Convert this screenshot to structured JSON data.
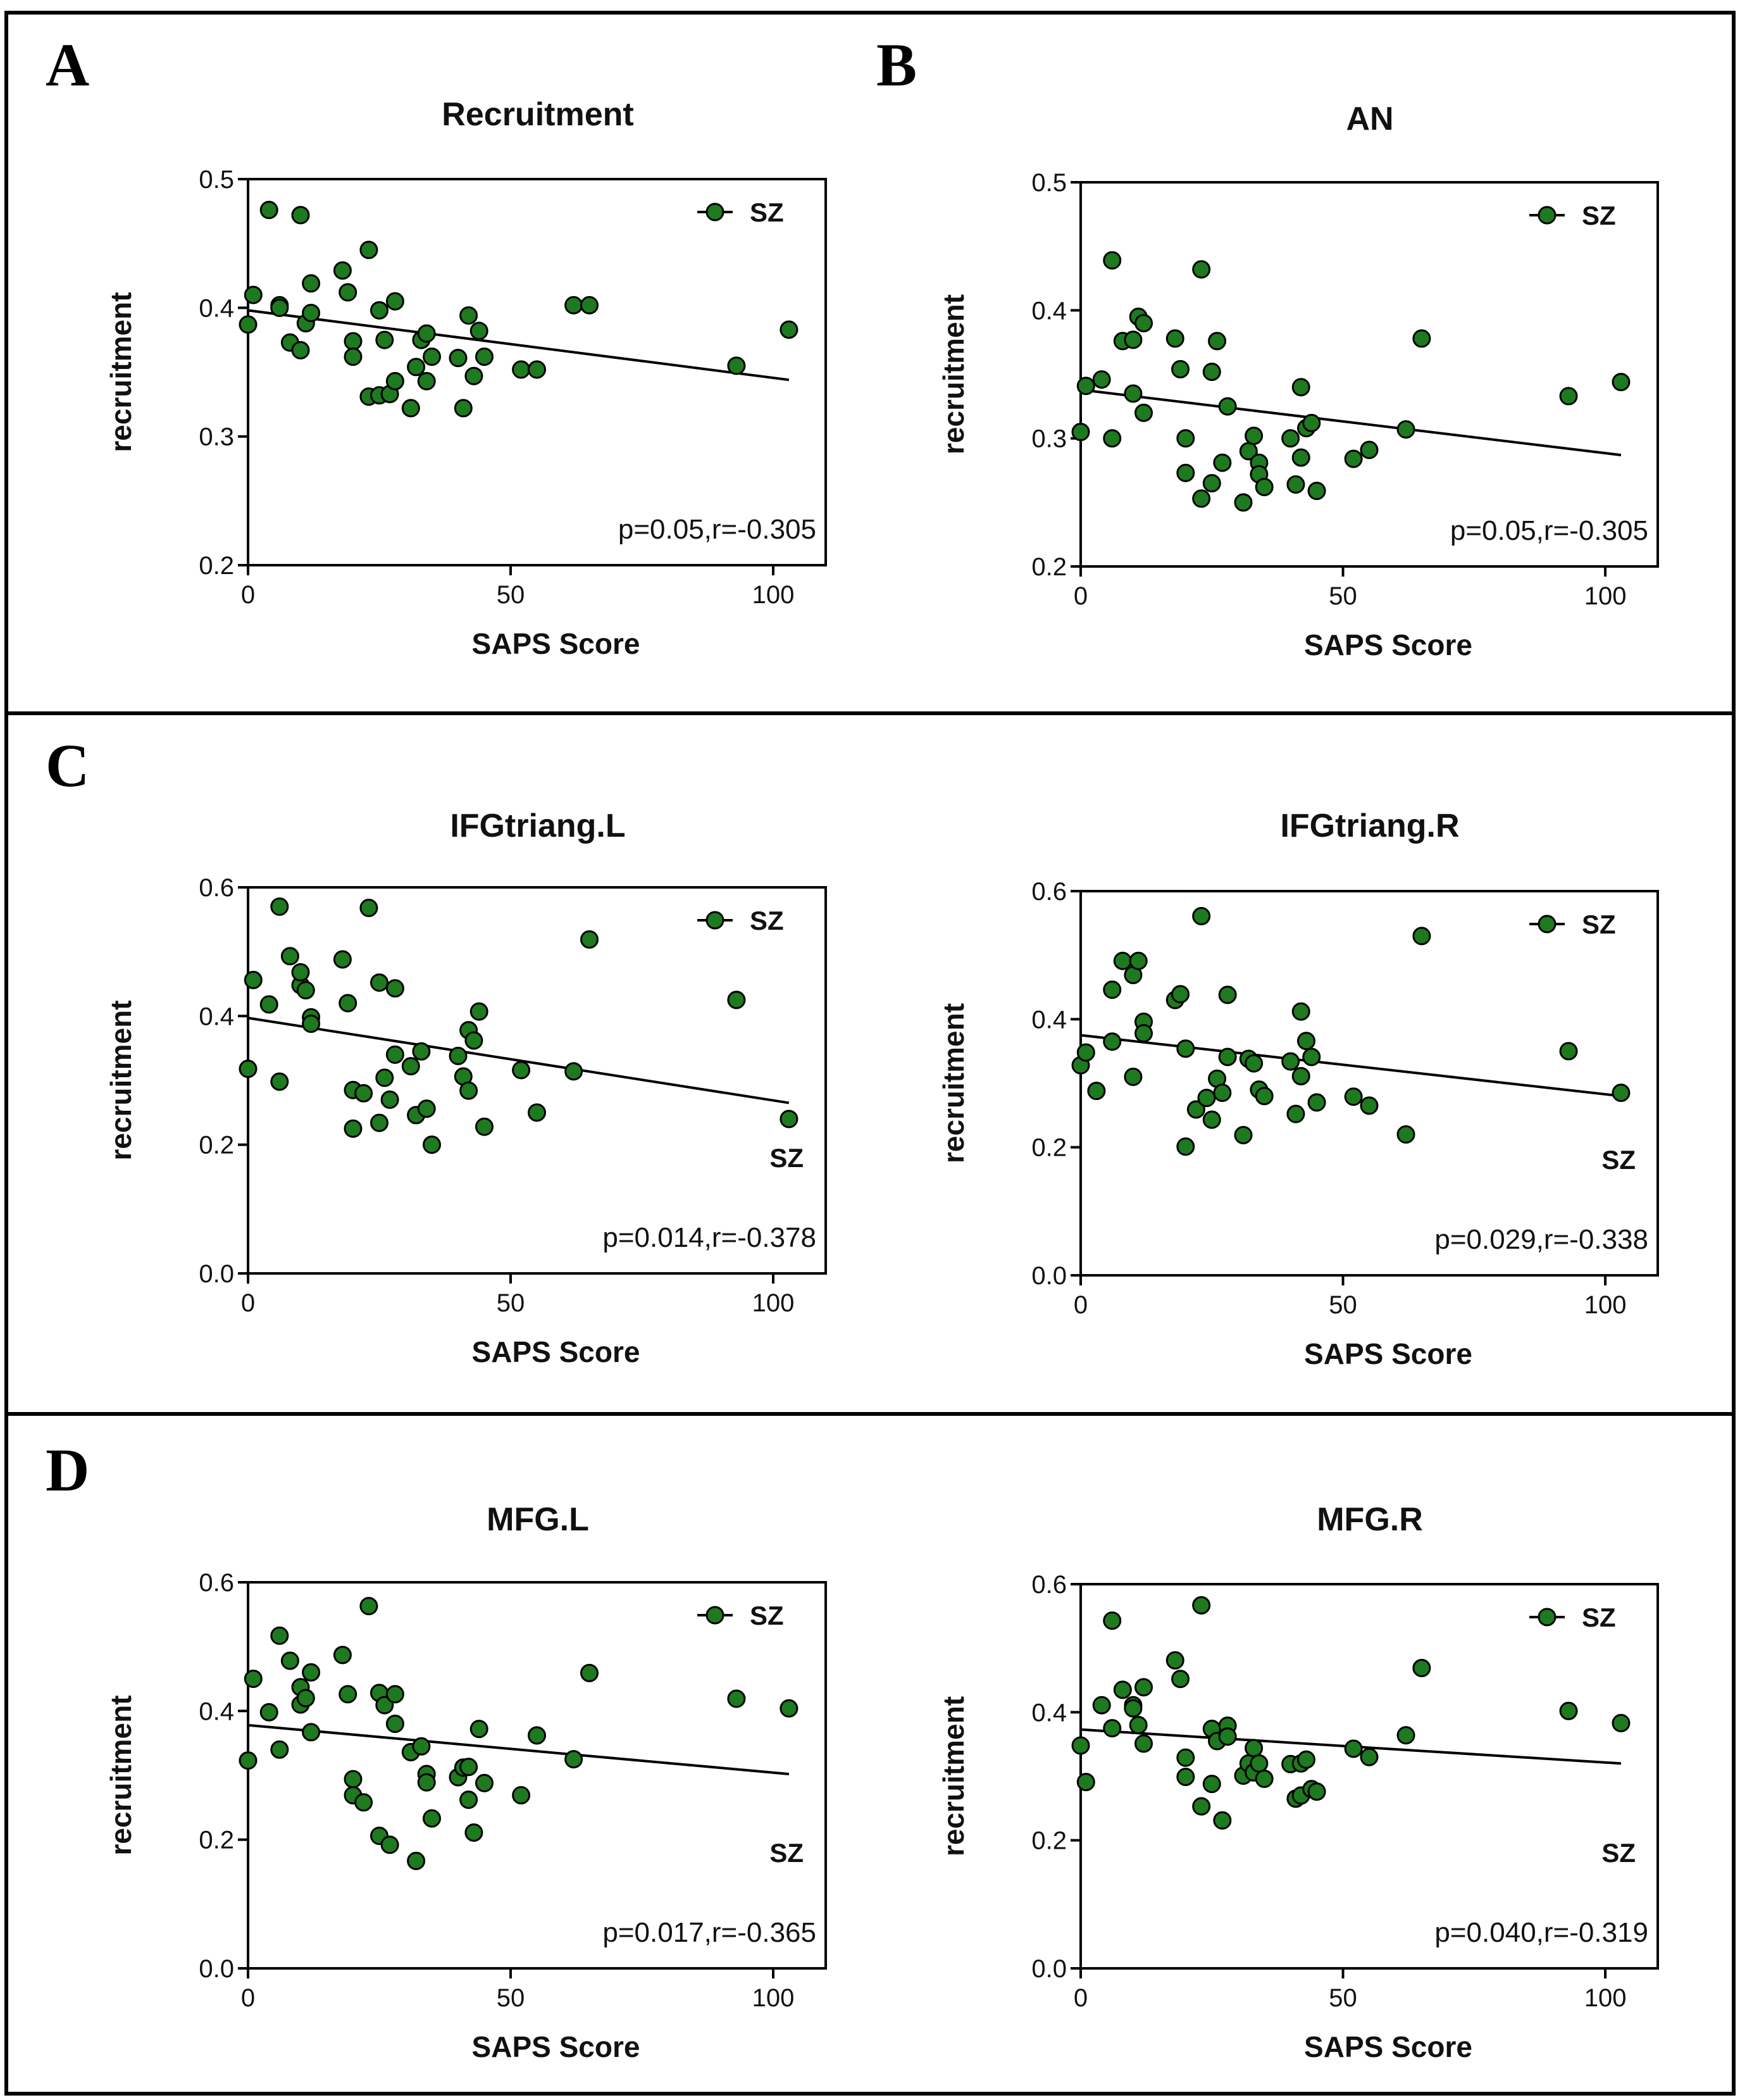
{
  "panel_letters": [
    "A",
    "B",
    "C",
    "D"
  ],
  "chart_data": [
    {
      "type": "scatter",
      "title": "Recruitment",
      "xlabel": "SAPS Score",
      "ylabel": "recruitment",
      "xlim": [
        0,
        110
      ],
      "ylim": [
        0.2,
        0.5
      ],
      "xticks": [
        0,
        50,
        100
      ],
      "yticks": [
        0.2,
        0.3,
        0.4,
        0.5
      ],
      "xtick_labels": [
        "0",
        "50",
        "100"
      ],
      "ytick_labels": [
        "0.2",
        "0.3",
        "0.4",
        "0.5"
      ],
      "legend": {
        "label": "SZ",
        "position": "top-right"
      },
      "series_label": "",
      "annotation": "p=0.05,r=-0.305",
      "marker_color": "#1e7a1e",
      "fit_line": {
        "x": [
          0,
          103
        ],
        "y": [
          0.398,
          0.344
        ]
      },
      "points": {
        "x": [
          0,
          1,
          4,
          6,
          6,
          8,
          10,
          10,
          11,
          12,
          12,
          18,
          19,
          20,
          20,
          23,
          23,
          25,
          25,
          26,
          27,
          28,
          28,
          31,
          32,
          33,
          34,
          34,
          35,
          40,
          41,
          42,
          43,
          44,
          45,
          52,
          55,
          62,
          65,
          93,
          103
        ],
        "y": [
          0.387,
          0.41,
          0.476,
          0.402,
          0.4,
          0.373,
          0.367,
          0.472,
          0.388,
          0.419,
          0.396,
          0.429,
          0.412,
          0.374,
          0.362,
          0.445,
          0.331,
          0.332,
          0.398,
          0.375,
          0.333,
          0.343,
          0.405,
          0.322,
          0.354,
          0.375,
          0.38,
          0.343,
          0.362,
          0.361,
          0.322,
          0.394,
          0.347,
          0.382,
          0.362,
          0.352,
          0.352,
          0.402,
          0.402,
          0.355,
          0.383
        ]
      }
    },
    {
      "type": "scatter",
      "title": "AN",
      "xlabel": "SAPS Score",
      "ylabel": "recruitment",
      "xlim": [
        0,
        110
      ],
      "ylim": [
        0.2,
        0.5
      ],
      "xticks": [
        0,
        50,
        100
      ],
      "yticks": [
        0.2,
        0.3,
        0.4,
        0.5
      ],
      "xtick_labels": [
        "0",
        "50",
        "100"
      ],
      "ytick_labels": [
        "0.2",
        "0.3",
        "0.4",
        "0.5"
      ],
      "legend": {
        "label": "SZ",
        "position": "top-right"
      },
      "series_label": "",
      "annotation": "p=0.05,r=-0.305",
      "marker_color": "#1e7a1e",
      "fit_line": {
        "x": [
          0,
          103
        ],
        "y": [
          0.338,
          0.287
        ]
      },
      "points": {
        "x": [
          0,
          1,
          4,
          6,
          6,
          8,
          10,
          10,
          11,
          12,
          12,
          18,
          19,
          20,
          20,
          23,
          23,
          25,
          25,
          26,
          27,
          28,
          31,
          32,
          33,
          34,
          34,
          35,
          40,
          41,
          42,
          42,
          43,
          44,
          45,
          52,
          55,
          62,
          65,
          93,
          103
        ],
        "y": [
          0.305,
          0.341,
          0.346,
          0.439,
          0.3,
          0.376,
          0.377,
          0.335,
          0.395,
          0.39,
          0.32,
          0.378,
          0.354,
          0.3,
          0.273,
          0.432,
          0.253,
          0.352,
          0.265,
          0.376,
          0.281,
          0.325,
          0.25,
          0.29,
          0.302,
          0.281,
          0.272,
          0.262,
          0.3,
          0.264,
          0.285,
          0.34,
          0.308,
          0.312,
          0.259,
          0.284,
          0.291,
          0.307,
          0.378,
          0.333,
          0.344
        ]
      }
    },
    {
      "type": "scatter",
      "title": "IFGtriang.L",
      "xlabel": "SAPS Score",
      "ylabel": "recruitment",
      "xlim": [
        0,
        110
      ],
      "ylim": [
        0.0,
        0.6
      ],
      "xticks": [
        0,
        50,
        100
      ],
      "yticks": [
        0.0,
        0.2,
        0.4,
        0.6
      ],
      "xtick_labels": [
        "0",
        "50",
        "100"
      ],
      "ytick_labels": [
        "0.0",
        "0.2",
        "0.4",
        "0.6"
      ],
      "legend": {
        "label": "SZ",
        "position": "top-right"
      },
      "series_label": "SZ",
      "annotation": "p=0.014,r=-0.378",
      "marker_color": "#1e7a1e",
      "fit_line": {
        "x": [
          0,
          103
        ],
        "y": [
          0.397,
          0.265
        ]
      },
      "points": {
        "x": [
          0,
          1,
          4,
          6,
          6,
          8,
          10,
          10,
          11,
          12,
          12,
          18,
          19,
          20,
          20,
          22,
          23,
          25,
          25,
          26,
          27,
          28,
          28,
          31,
          32,
          33,
          34,
          35,
          40,
          41,
          42,
          42,
          43,
          44,
          45,
          52,
          55,
          62,
          65,
          93,
          103
        ],
        "y": [
          0.318,
          0.456,
          0.418,
          0.57,
          0.298,
          0.493,
          0.448,
          0.468,
          0.44,
          0.398,
          0.388,
          0.488,
          0.42,
          0.285,
          0.225,
          0.28,
          0.568,
          0.452,
          0.234,
          0.304,
          0.27,
          0.443,
          0.34,
          0.322,
          0.246,
          0.345,
          0.256,
          0.2,
          0.338,
          0.306,
          0.378,
          0.284,
          0.362,
          0.407,
          0.228,
          0.316,
          0.25,
          0.314,
          0.519,
          0.425,
          0.24
        ]
      }
    },
    {
      "type": "scatter",
      "title": "IFGtriang.R",
      "xlabel": "SAPS Score",
      "ylabel": "recruitment",
      "xlim": [
        0,
        110
      ],
      "ylim": [
        0.0,
        0.6
      ],
      "xticks": [
        0,
        50,
        100
      ],
      "yticks": [
        0.0,
        0.2,
        0.4,
        0.6
      ],
      "xtick_labels": [
        "0",
        "50",
        "100"
      ],
      "ytick_labels": [
        "0.0",
        "0.2",
        "0.4",
        "0.6"
      ],
      "legend": {
        "label": "SZ",
        "position": "top-right"
      },
      "series_label": "SZ",
      "annotation": "p=0.029,r=-0.338",
      "marker_color": "#1e7a1e",
      "fit_line": {
        "x": [
          0,
          103
        ],
        "y": [
          0.375,
          0.28
        ]
      },
      "points": {
        "x": [
          0,
          1,
          3,
          6,
          6,
          8,
          10,
          10,
          11,
          12,
          12,
          18,
          19,
          20,
          20,
          22,
          23,
          24,
          25,
          26,
          27,
          28,
          28,
          31,
          32,
          33,
          34,
          35,
          40,
          41,
          42,
          42,
          43,
          44,
          45,
          52,
          55,
          62,
          65,
          93,
          103
        ],
        "y": [
          0.328,
          0.348,
          0.288,
          0.446,
          0.365,
          0.491,
          0.469,
          0.31,
          0.491,
          0.396,
          0.378,
          0.43,
          0.439,
          0.354,
          0.201,
          0.259,
          0.561,
          0.277,
          0.243,
          0.307,
          0.285,
          0.438,
          0.341,
          0.219,
          0.338,
          0.331,
          0.29,
          0.28,
          0.334,
          0.252,
          0.412,
          0.311,
          0.366,
          0.341,
          0.27,
          0.279,
          0.265,
          0.22,
          0.53,
          0.35,
          0.285
        ]
      }
    },
    {
      "type": "scatter",
      "title": "MFG.L",
      "xlabel": "SAPS Score",
      "ylabel": "recruitment",
      "xlim": [
        0,
        110
      ],
      "ylim": [
        0.0,
        0.6
      ],
      "xticks": [
        0,
        50,
        100
      ],
      "yticks": [
        0.0,
        0.2,
        0.4,
        0.6
      ],
      "xtick_labels": [
        "0",
        "50",
        "100"
      ],
      "ytick_labels": [
        "0.0",
        "0.2",
        "0.4",
        "0.6"
      ],
      "legend": {
        "label": "SZ",
        "position": "top-right"
      },
      "series_label": "SZ",
      "annotation": "p=0.017,r=-0.365",
      "marker_color": "#1e7a1e",
      "fit_line": {
        "x": [
          0,
          103
        ],
        "y": [
          0.378,
          0.302
        ]
      },
      "points": {
        "x": [
          0,
          1,
          4,
          6,
          6,
          8,
          10,
          10,
          11,
          12,
          12,
          18,
          19,
          20,
          20,
          22,
          23,
          25,
          25,
          26,
          27,
          28,
          28,
          31,
          32,
          33,
          34,
          34,
          35,
          40,
          41,
          42,
          42,
          43,
          44,
          45,
          52,
          55,
          62,
          65,
          93,
          103
        ],
        "y": [
          0.323,
          0.45,
          0.398,
          0.517,
          0.34,
          0.478,
          0.41,
          0.437,
          0.42,
          0.46,
          0.367,
          0.487,
          0.426,
          0.294,
          0.269,
          0.258,
          0.563,
          0.206,
          0.428,
          0.409,
          0.192,
          0.426,
          0.38,
          0.336,
          0.167,
          0.345,
          0.302,
          0.289,
          0.233,
          0.297,
          0.312,
          0.262,
          0.313,
          0.211,
          0.372,
          0.288,
          0.269,
          0.362,
          0.325,
          0.459,
          0.419,
          0.404
        ]
      }
    },
    {
      "type": "scatter",
      "title": "MFG.R",
      "xlabel": "SAPS Score",
      "ylabel": "recruitment",
      "xlim": [
        0,
        110
      ],
      "ylim": [
        0.0,
        0.6
      ],
      "xticks": [
        0,
        50,
        100
      ],
      "yticks": [
        0.0,
        0.2,
        0.4,
        0.6
      ],
      "xtick_labels": [
        "0",
        "50",
        "100"
      ],
      "ytick_labels": [
        "0.0",
        "0.2",
        "0.4",
        "0.6"
      ],
      "legend": {
        "label": "SZ",
        "position": "top-right"
      },
      "series_label": "SZ",
      "annotation": "p=0.040,r=-0.319",
      "marker_color": "#1e7a1e",
      "fit_line": {
        "x": [
          0,
          103
        ],
        "y": [
          0.373,
          0.32
        ]
      },
      "points": {
        "x": [
          0,
          1,
          4,
          6,
          6,
          8,
          10,
          10,
          11,
          12,
          12,
          18,
          19,
          20,
          20,
          23,
          23,
          25,
          25,
          26,
          27,
          28,
          28,
          31,
          32,
          33,
          33,
          34,
          35,
          40,
          41,
          42,
          42,
          43,
          44,
          45,
          52,
          55,
          62,
          65,
          93,
          103
        ],
        "y": [
          0.348,
          0.291,
          0.411,
          0.543,
          0.375,
          0.435,
          0.411,
          0.406,
          0.38,
          0.439,
          0.351,
          0.481,
          0.452,
          0.329,
          0.299,
          0.567,
          0.253,
          0.288,
          0.374,
          0.355,
          0.231,
          0.379,
          0.362,
          0.301,
          0.32,
          0.344,
          0.306,
          0.32,
          0.296,
          0.319,
          0.265,
          0.32,
          0.27,
          0.326,
          0.28,
          0.276,
          0.343,
          0.33,
          0.364,
          0.469,
          0.402,
          0.383
        ]
      }
    }
  ]
}
